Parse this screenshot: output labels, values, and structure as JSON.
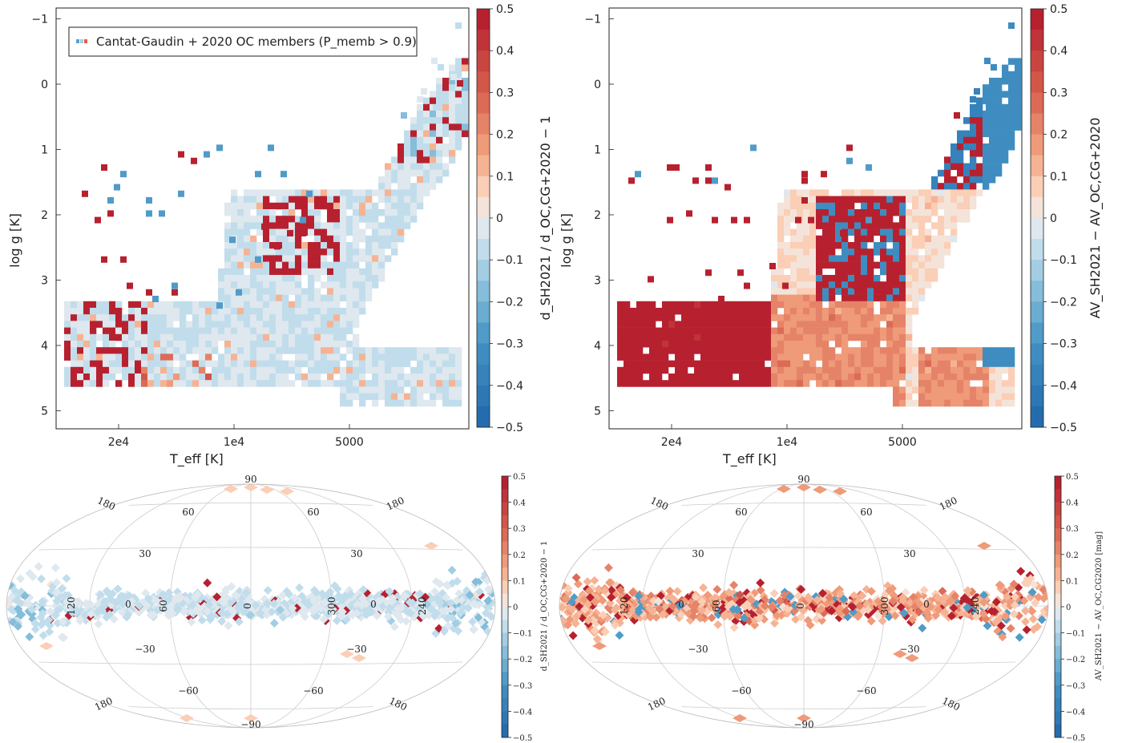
{
  "chart_data": [
    {
      "id": "hr_distance",
      "type": "heatmap",
      "xlabel": "T_eff [K]",
      "ylabel": "log g [K]",
      "xticks": [
        "2e4",
        "1e4",
        "5000"
      ],
      "yticks": [
        "−1",
        "0",
        "1",
        "2",
        "3",
        "4",
        "5"
      ],
      "x_scale": "log",
      "x_reversed": true,
      "y_reversed": true,
      "ylim": [
        -1.1,
        5.2
      ],
      "colorbar": {
        "label": "d_SH2021 / d_OC,CG+2020 − 1",
        "range": [
          -0.5,
          0.5
        ],
        "ticks": [
          "0.5",
          "0.4",
          "0.3",
          "0.2",
          "0.1",
          "0",
          "−0.1",
          "−0.2",
          "−0.3",
          "−0.4",
          "−0.5"
        ],
        "cmap": "RdBu_r"
      },
      "legend": {
        "label": "Cantat-Gaudin + 2020 OC members (P_memb > 0.9)",
        "loc": "upper left"
      }
    },
    {
      "id": "hr_extinction",
      "type": "heatmap",
      "xlabel": "T_eff [K]",
      "ylabel": "log g [K]",
      "xticks": [
        "2e4",
        "1e4",
        "5000"
      ],
      "yticks": [
        "−1",
        "0",
        "1",
        "2",
        "3",
        "4",
        "5"
      ],
      "x_scale": "log",
      "x_reversed": true,
      "y_reversed": true,
      "colorbar": {
        "label": "AV_SH2021 − AV_OC,CG+2020",
        "range": [
          -0.5,
          0.5
        ],
        "ticks": [
          "0.5",
          "0.4",
          "0.3",
          "0.2",
          "0.1",
          "0",
          "−0.1",
          "−0.2",
          "−0.3",
          "−0.4",
          "−0.5"
        ],
        "cmap": "RdBu_r"
      }
    },
    {
      "id": "sky_distance",
      "type": "heatmap",
      "projection": "aitoff",
      "lon_labels": [
        "120",
        "60",
        "0",
        "300",
        "240"
      ],
      "lat_labels": [
        "90",
        "60",
        "30",
        "0",
        "−30",
        "−60",
        "−90"
      ],
      "colorbar": {
        "label": "d_SH2021 / d_OC,CG+2020 − 1",
        "range": [
          -0.5,
          0.5
        ],
        "ticks": [
          "0.5",
          "0.4",
          "0.3",
          "0.2",
          "0.1",
          "0",
          "−0.1",
          "−0.2",
          "−0.3",
          "−0.4",
          "−0.5"
        ],
        "cmap": "RdBu_r"
      }
    },
    {
      "id": "sky_extinction",
      "type": "heatmap",
      "projection": "aitoff",
      "lon_labels": [
        "120",
        "60",
        "0",
        "300",
        "240"
      ],
      "lat_labels": [
        "90",
        "60",
        "30",
        "0",
        "−30",
        "−60",
        "−90"
      ],
      "colorbar": {
        "label": "AV_SH2021 − AV_OC,CG2020 [mag]",
        "range": [
          -0.5,
          0.5
        ],
        "ticks": [
          "0.5",
          "0.4",
          "0.3",
          "0.2",
          "0.1",
          "0",
          "−0.1",
          "−0.2",
          "−0.3",
          "−0.4",
          "−0.5"
        ],
        "cmap": "RdBu_r"
      }
    }
  ]
}
